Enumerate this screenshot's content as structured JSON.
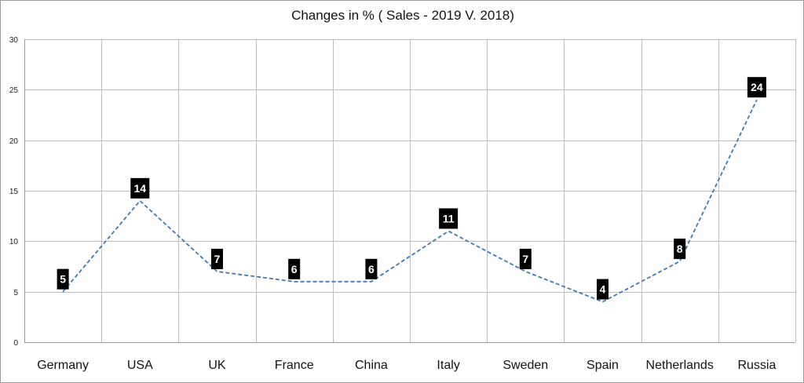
{
  "chart_data": {
    "type": "line",
    "title": "Changes in % ( Sales - 2019 V. 2018)",
    "xlabel": "",
    "ylabel": "",
    "categories": [
      "Germany",
      "USA",
      "UK",
      "France",
      "China",
      "Italy",
      "Sweden",
      "Spain",
      "Netherlands",
      "Russia"
    ],
    "series": [
      {
        "values": [
          5,
          14,
          7,
          6,
          6,
          11,
          7,
          4,
          8,
          24
        ]
      }
    ],
    "data_labels": [
      "5",
      "14",
      "7",
      "6",
      "6",
      "11",
      "7",
      "4",
      "8",
      "24"
    ],
    "ylim": [
      0,
      30
    ],
    "yticks": [
      0,
      5,
      10,
      15,
      20,
      25,
      30
    ],
    "ytick_labels": [
      "0",
      "5",
      "10",
      "15",
      "20",
      "25",
      "30"
    ],
    "grid": true,
    "line_color": "#3f79b5",
    "line_style": "dashed",
    "data_label_background": "#000000",
    "data_label_color": "#ffffff"
  }
}
